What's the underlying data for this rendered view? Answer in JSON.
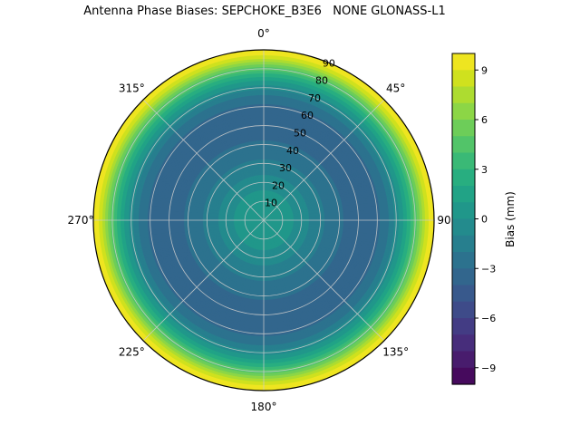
{
  "page": {
    "background": "#ffffff"
  },
  "chart_data": {
    "type": "heatmap",
    "subtype": "polar-filled-contour",
    "title": "Antenna Phase Biases: SEPCHOKE_B3E6   NONE GLONASS-L1",
    "angular_ticks": [
      {
        "angle_deg": 0,
        "label": "0°"
      },
      {
        "angle_deg": 45,
        "label": "45°"
      },
      {
        "angle_deg": 90,
        "label": "90°"
      },
      {
        "angle_deg": 135,
        "label": "135°"
      },
      {
        "angle_deg": 180,
        "label": "180°"
      },
      {
        "angle_deg": 225,
        "label": "225°"
      },
      {
        "angle_deg": 270,
        "label": "270°"
      },
      {
        "angle_deg": 315,
        "label": "315°"
      }
    ],
    "radial_ticks": [
      {
        "value": 10,
        "label": "10"
      },
      {
        "value": 20,
        "label": "20"
      },
      {
        "value": 30,
        "label": "30"
      },
      {
        "value": 40,
        "label": "40"
      },
      {
        "value": 50,
        "label": "50"
      },
      {
        "value": 60,
        "label": "60"
      },
      {
        "value": 70,
        "label": "70"
      },
      {
        "value": 80,
        "label": "80"
      },
      {
        "value": 90,
        "label": "90"
      }
    ],
    "radial_max": 90,
    "radial_label_angle_deg": 22.5,
    "grid_color": "#cccccc",
    "colorbar": {
      "label": "Bias (mm)",
      "vmin": -10,
      "vmax": 10,
      "level_step": 1,
      "colormap": "viridis",
      "ticks": [
        {
          "value": 9,
          "label": "9"
        },
        {
          "value": 6,
          "label": "6"
        },
        {
          "value": 3,
          "label": "3"
        },
        {
          "value": 0,
          "label": "0"
        },
        {
          "value": -3,
          "label": "−3"
        },
        {
          "value": -6,
          "label": "−6"
        },
        {
          "value": -9,
          "label": "−9"
        }
      ]
    },
    "colormap_stops": [
      [
        0.0,
        "#440154"
      ],
      [
        0.0625,
        "#48186a"
      ],
      [
        0.125,
        "#472d7b"
      ],
      [
        0.1875,
        "#424086"
      ],
      [
        0.25,
        "#3b528b"
      ],
      [
        0.3125,
        "#33638d"
      ],
      [
        0.375,
        "#2c728e"
      ],
      [
        0.4375,
        "#26828e"
      ],
      [
        0.5,
        "#21918c"
      ],
      [
        0.5625,
        "#1fa088"
      ],
      [
        0.625,
        "#28ae80"
      ],
      [
        0.6875,
        "#3fbc73"
      ],
      [
        0.75,
        "#5ec962"
      ],
      [
        0.8125,
        "#84d44b"
      ],
      [
        0.875,
        "#addc30"
      ],
      [
        0.9375,
        "#d8e219"
      ],
      [
        1.0,
        "#fde725"
      ]
    ],
    "profile": {
      "zenith_deg": [
        0,
        5,
        10,
        15,
        20,
        25,
        30,
        35,
        40,
        45,
        50,
        55,
        60,
        65,
        68,
        70,
        72,
        74,
        76,
        78,
        80,
        82,
        84,
        86,
        88,
        90
      ],
      "bias_mm": [
        0.8,
        0.7,
        0.4,
        0.1,
        -0.5,
        -1.1,
        -1.7,
        -2.3,
        -2.8,
        -3.2,
        -3.5,
        -3.6,
        -3.3,
        -2.4,
        -1.5,
        -0.7,
        0.1,
        1.0,
        2.0,
        3.2,
        4.4,
        5.7,
        7.0,
        8.3,
        9.5,
        10.0
      ]
    }
  }
}
